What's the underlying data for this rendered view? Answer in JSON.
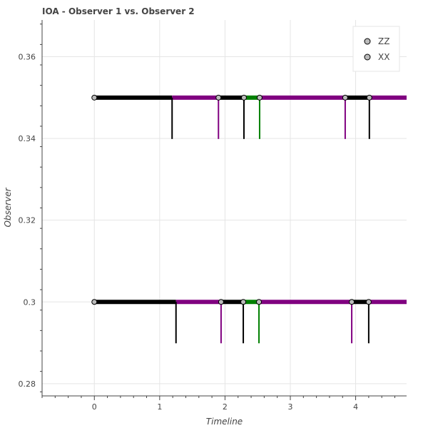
{
  "chart_data": {
    "type": "line",
    "title": "IOA - Observer 1 vs. Observer 2",
    "xlabel": "Timeline",
    "ylabel": "Observer",
    "xlim": [
      -0.8,
      4.78
    ],
    "ylim": [
      0.277,
      0.369
    ],
    "x_ticks": [
      0,
      1,
      2,
      3,
      4
    ],
    "y_ticks": [
      0.28,
      0.3,
      0.32,
      0.34,
      0.36
    ],
    "x_tick_labels": [
      "0",
      "1",
      "2",
      "3",
      "4"
    ],
    "y_tick_labels": [
      "0.28",
      "0.3",
      "0.32",
      "0.34",
      "0.36"
    ],
    "grid": true,
    "legend": {
      "position": "top-right",
      "entries": [
        "ZZ",
        "XX"
      ]
    },
    "colors": {
      "black": "#000000",
      "purple": "#800080",
      "green": "#008000",
      "marker_fill": "#bbbbbb",
      "grid": "#e5e5e5",
      "axis": "#444444"
    },
    "rows": [
      {
        "y": 0.35,
        "segments": [
          {
            "x0": 0.0,
            "x1": 1.19,
            "color": "black"
          },
          {
            "x0": 1.19,
            "x1": 1.9,
            "color": "purple"
          },
          {
            "x0": 1.9,
            "x1": 2.29,
            "color": "black"
          },
          {
            "x0": 2.29,
            "x1": 2.53,
            "color": "green"
          },
          {
            "x0": 2.53,
            "x1": 3.84,
            "color": "purple"
          },
          {
            "x0": 3.84,
            "x1": 4.21,
            "color": "black"
          },
          {
            "x0": 4.21,
            "x1": 4.78,
            "color": "purple"
          }
        ],
        "markers": [
          0.0,
          1.9,
          2.29,
          2.53,
          3.84,
          4.21
        ],
        "ticks": [
          {
            "x": 1.19,
            "color": "black"
          },
          {
            "x": 1.9,
            "color": "purple"
          },
          {
            "x": 2.29,
            "color": "black"
          },
          {
            "x": 2.53,
            "color": "green"
          },
          {
            "x": 3.84,
            "color": "purple"
          },
          {
            "x": 4.21,
            "color": "black"
          }
        ]
      },
      {
        "y": 0.3,
        "segments": [
          {
            "x0": 0.0,
            "x1": 1.25,
            "color": "black"
          },
          {
            "x0": 1.25,
            "x1": 1.94,
            "color": "purple"
          },
          {
            "x0": 1.94,
            "x1": 2.28,
            "color": "black"
          },
          {
            "x0": 2.28,
            "x1": 2.52,
            "color": "green"
          },
          {
            "x0": 2.52,
            "x1": 3.94,
            "color": "purple"
          },
          {
            "x0": 3.94,
            "x1": 4.2,
            "color": "black"
          },
          {
            "x0": 4.2,
            "x1": 4.78,
            "color": "purple"
          }
        ],
        "markers": [
          0.0,
          1.94,
          2.28,
          2.52,
          3.94,
          4.2
        ],
        "ticks": [
          {
            "x": 1.25,
            "color": "black"
          },
          {
            "x": 1.94,
            "color": "purple"
          },
          {
            "x": 2.28,
            "color": "black"
          },
          {
            "x": 2.52,
            "color": "green"
          },
          {
            "x": 3.94,
            "color": "purple"
          },
          {
            "x": 4.2,
            "color": "black"
          }
        ]
      }
    ]
  }
}
